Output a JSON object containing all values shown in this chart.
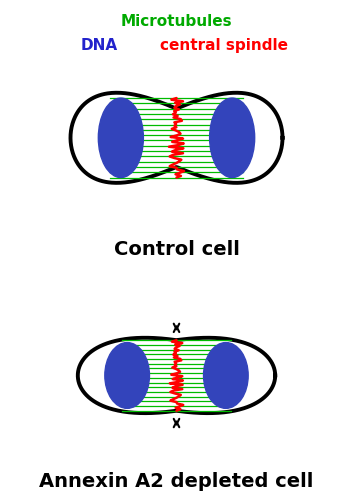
{
  "bg_color": "#ffffff",
  "title_control": "Control cell",
  "title_depleted": "Annexin A2 depleted cell",
  "label_microtubules": "Microtubules",
  "label_dna": "DNA",
  "label_spindle": "central spindle",
  "color_microtubules": "#00aa00",
  "color_dna": "#2222cc",
  "color_spindle": "#ff0000",
  "color_cell_outline": "#000000",
  "color_title": "#000000",
  "mt_color": "#00bb00",
  "nucleus_color": "#3344bb",
  "midbody_color": "#ff0000",
  "title_fontsize": 14,
  "label_fontsize": 11
}
